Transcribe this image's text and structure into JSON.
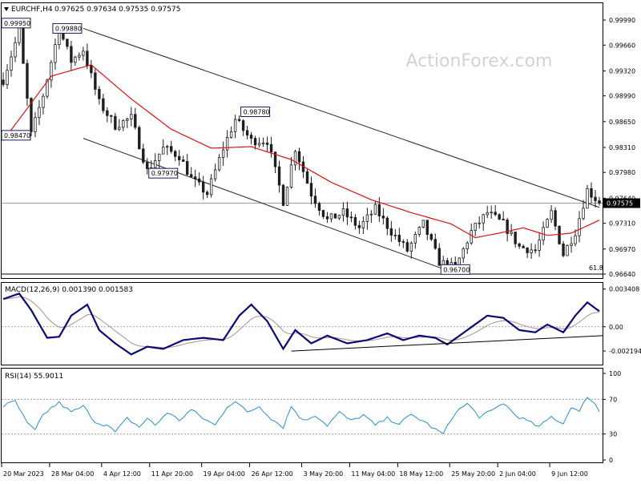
{
  "header": {
    "symbol": "EURCHF,H4",
    "ohlc": "0.97625 0.97634 0.97535 0.97575"
  },
  "watermark": "ActionForex.com",
  "colors": {
    "candle": "#1e1e1e",
    "ma": "#dd1111",
    "channel": "#222222",
    "macd_main": "#0a0a78",
    "macd_signal": "#b09090",
    "rsi": "#2a8fd0",
    "grid": "#a0a0a0"
  },
  "chart_data": [
    {
      "id": "price",
      "type": "candlestick",
      "title": "EURCHF,H4",
      "ylim": [
        0.9664,
        1.0017
      ],
      "yticks": [
        "0.99990",
        "0.99660",
        "0.99320",
        "0.98990",
        "0.98650",
        "0.98310",
        "0.97980",
        "0.97640",
        "0.97310",
        "0.96970",
        "0.96640"
      ],
      "current_price": "0.97575",
      "fib_label": "61.8",
      "fib_level": 0.9664,
      "anchors": [
        {
          "x": 0,
          "y": 0.992
        },
        {
          "x": 4,
          "y": 0.9985
        },
        {
          "x": 7,
          "y": 0.9848
        },
        {
          "x": 10,
          "y": 0.99
        },
        {
          "x": 14,
          "y": 0.9988
        },
        {
          "x": 17,
          "y": 0.9945
        },
        {
          "x": 20,
          "y": 0.996
        },
        {
          "x": 24,
          "y": 0.989
        },
        {
          "x": 28,
          "y": 0.986
        },
        {
          "x": 32,
          "y": 0.987
        },
        {
          "x": 36,
          "y": 0.98
        },
        {
          "x": 40,
          "y": 0.983
        },
        {
          "x": 44,
          "y": 0.982
        },
        {
          "x": 47,
          "y": 0.979
        },
        {
          "x": 51,
          "y": 0.977
        },
        {
          "x": 55,
          "y": 0.983
        },
        {
          "x": 58,
          "y": 0.9868
        },
        {
          "x": 62,
          "y": 0.984
        },
        {
          "x": 66,
          "y": 0.984
        },
        {
          "x": 70,
          "y": 0.976
        },
        {
          "x": 73,
          "y": 0.983
        },
        {
          "x": 77,
          "y": 0.977
        },
        {
          "x": 81,
          "y": 0.9735
        },
        {
          "x": 85,
          "y": 0.9745
        },
        {
          "x": 89,
          "y": 0.9725
        },
        {
          "x": 93,
          "y": 0.975
        },
        {
          "x": 97,
          "y": 0.972
        },
        {
          "x": 101,
          "y": 0.9695
        },
        {
          "x": 105,
          "y": 0.973
        },
        {
          "x": 109,
          "y": 0.968
        },
        {
          "x": 113,
          "y": 0.9672
        },
        {
          "x": 117,
          "y": 0.972
        },
        {
          "x": 121,
          "y": 0.9745
        },
        {
          "x": 125,
          "y": 0.973
        },
        {
          "x": 129,
          "y": 0.97
        },
        {
          "x": 133,
          "y": 0.9695
        },
        {
          "x": 137,
          "y": 0.9745
        },
        {
          "x": 140,
          "y": 0.969
        },
        {
          "x": 143,
          "y": 0.972
        },
        {
          "x": 146,
          "y": 0.9775
        },
        {
          "x": 149,
          "y": 0.9758
        }
      ],
      "ma_anchors": [
        {
          "x": 0,
          "y": 0.984
        },
        {
          "x": 12,
          "y": 0.9925
        },
        {
          "x": 22,
          "y": 0.994
        },
        {
          "x": 32,
          "y": 0.9895
        },
        {
          "x": 42,
          "y": 0.9855
        },
        {
          "x": 52,
          "y": 0.983
        },
        {
          "x": 62,
          "y": 0.9832
        },
        {
          "x": 72,
          "y": 0.9815
        },
        {
          "x": 82,
          "y": 0.9785
        },
        {
          "x": 92,
          "y": 0.9762
        },
        {
          "x": 102,
          "y": 0.9745
        },
        {
          "x": 112,
          "y": 0.973
        },
        {
          "x": 118,
          "y": 0.9712
        },
        {
          "x": 124,
          "y": 0.9718
        },
        {
          "x": 130,
          "y": 0.9725
        },
        {
          "x": 136,
          "y": 0.9715
        },
        {
          "x": 142,
          "y": 0.9718
        },
        {
          "x": 149,
          "y": 0.9735
        }
      ],
      "labels": [
        {
          "text": "0.99950",
          "x": 0,
          "y": 0.9995
        },
        {
          "text": "0.99880",
          "x": 16,
          "y": 0.9988
        },
        {
          "text": "0.98470",
          "x": 2,
          "y": 0.9847
        },
        {
          "text": "0.97970",
          "x": 40,
          "y": 0.9797
        },
        {
          "text": "0.98780",
          "x": 63,
          "y": 0.9878
        },
        {
          "text": "0.96700",
          "x": 113,
          "y": 0.967
        }
      ],
      "trendlines": [
        {
          "x1": 20,
          "y1": 0.9988,
          "x2": 149,
          "y2": 0.9752
        },
        {
          "x1": 20,
          "y1": 0.9843,
          "x2": 112,
          "y2": 0.9667
        }
      ]
    },
    {
      "id": "macd",
      "type": "line",
      "title": "MACD(12,26,9) 0.001390 0.001583",
      "ylim": [
        -0.0032,
        0.0036
      ],
      "yticks": [
        "0.003408",
        "0.00",
        "-0.002194"
      ],
      "zero_label": "0.00",
      "main_anchors": [
        {
          "x": 0,
          "y": 0.0025
        },
        {
          "x": 4,
          "y": 0.003
        },
        {
          "x": 7,
          "y": 0.0015
        },
        {
          "x": 11,
          "y": -0.001
        },
        {
          "x": 14,
          "y": -0.0009
        },
        {
          "x": 17,
          "y": 0.001
        },
        {
          "x": 21,
          "y": 0.002
        },
        {
          "x": 24,
          "y": -0.0003
        },
        {
          "x": 28,
          "y": -0.0015
        },
        {
          "x": 32,
          "y": -0.0025
        },
        {
          "x": 36,
          "y": -0.0018
        },
        {
          "x": 40,
          "y": -0.002
        },
        {
          "x": 45,
          "y": -0.0012
        },
        {
          "x": 50,
          "y": -0.001
        },
        {
          "x": 55,
          "y": -0.0012
        },
        {
          "x": 59,
          "y": 0.001
        },
        {
          "x": 62,
          "y": 0.002
        },
        {
          "x": 66,
          "y": 0.0005
        },
        {
          "x": 70,
          "y": -0.002
        },
        {
          "x": 73,
          "y": -0.0003
        },
        {
          "x": 77,
          "y": -0.0015
        },
        {
          "x": 81,
          "y": -0.0008
        },
        {
          "x": 86,
          "y": -0.0015
        },
        {
          "x": 91,
          "y": -0.0012
        },
        {
          "x": 96,
          "y": -0.0006
        },
        {
          "x": 100,
          "y": -0.0012
        },
        {
          "x": 104,
          "y": -0.0008
        },
        {
          "x": 108,
          "y": -0.001
        },
        {
          "x": 111,
          "y": -0.0016
        },
        {
          "x": 116,
          "y": -0.0003
        },
        {
          "x": 121,
          "y": 0.001
        },
        {
          "x": 125,
          "y": 0.0008
        },
        {
          "x": 129,
          "y": -0.0003
        },
        {
          "x": 133,
          "y": -0.0005
        },
        {
          "x": 136,
          "y": 0.0002
        },
        {
          "x": 140,
          "y": -0.0005
        },
        {
          "x": 143,
          "y": 0.001
        },
        {
          "x": 146,
          "y": 0.0022
        },
        {
          "x": 149,
          "y": 0.0014
        }
      ],
      "trendline": {
        "x1": 72,
        "y1": -0.0022,
        "x2": 149,
        "y2": -0.0008
      }
    },
    {
      "id": "rsi",
      "type": "line",
      "title": "RSI(14) 55.9011",
      "ylim": [
        0,
        100
      ],
      "yticks": [
        "100",
        "70",
        "30",
        "0"
      ],
      "levels": [
        70,
        30
      ],
      "anchors": [
        {
          "x": 0,
          "y": 62
        },
        {
          "x": 3,
          "y": 68
        },
        {
          "x": 6,
          "y": 42
        },
        {
          "x": 8,
          "y": 34
        },
        {
          "x": 10,
          "y": 52
        },
        {
          "x": 12,
          "y": 60
        },
        {
          "x": 14,
          "y": 66
        },
        {
          "x": 17,
          "y": 55
        },
        {
          "x": 20,
          "y": 62
        },
        {
          "x": 23,
          "y": 44
        },
        {
          "x": 26,
          "y": 40
        },
        {
          "x": 28,
          "y": 32
        },
        {
          "x": 31,
          "y": 48
        },
        {
          "x": 34,
          "y": 38
        },
        {
          "x": 36,
          "y": 48
        },
        {
          "x": 38,
          "y": 40
        },
        {
          "x": 41,
          "y": 55
        },
        {
          "x": 44,
          "y": 46
        },
        {
          "x": 47,
          "y": 58
        },
        {
          "x": 50,
          "y": 48
        },
        {
          "x": 53,
          "y": 40
        },
        {
          "x": 56,
          "y": 62
        },
        {
          "x": 58,
          "y": 68
        },
        {
          "x": 61,
          "y": 55
        },
        {
          "x": 64,
          "y": 62
        },
        {
          "x": 67,
          "y": 48
        },
        {
          "x": 70,
          "y": 38
        },
        {
          "x": 72,
          "y": 62
        },
        {
          "x": 75,
          "y": 45
        },
        {
          "x": 78,
          "y": 52
        },
        {
          "x": 81,
          "y": 40
        },
        {
          "x": 84,
          "y": 55
        },
        {
          "x": 87,
          "y": 45
        },
        {
          "x": 90,
          "y": 52
        },
        {
          "x": 93,
          "y": 40
        },
        {
          "x": 96,
          "y": 48
        },
        {
          "x": 99,
          "y": 42
        },
        {
          "x": 102,
          "y": 52
        },
        {
          "x": 105,
          "y": 45
        },
        {
          "x": 108,
          "y": 35
        },
        {
          "x": 110,
          "y": 30
        },
        {
          "x": 113,
          "y": 55
        },
        {
          "x": 116,
          "y": 65
        },
        {
          "x": 119,
          "y": 50
        },
        {
          "x": 122,
          "y": 56
        },
        {
          "x": 125,
          "y": 66
        },
        {
          "x": 128,
          "y": 52
        },
        {
          "x": 131,
          "y": 45
        },
        {
          "x": 134,
          "y": 38
        },
        {
          "x": 137,
          "y": 50
        },
        {
          "x": 140,
          "y": 42
        },
        {
          "x": 142,
          "y": 62
        },
        {
          "x": 144,
          "y": 55
        },
        {
          "x": 146,
          "y": 74
        },
        {
          "x": 148,
          "y": 64
        },
        {
          "x": 149,
          "y": 56
        }
      ]
    }
  ],
  "x_axis": {
    "labels": [
      "20 Mar 2023",
      "28 Mar 04:00",
      "4 Apr 12:00",
      "11 Apr 20:00",
      "19 Apr 04:00",
      "26 Apr 12:00",
      "3 May 20:00",
      "11 May 04:00",
      "18 May 12:00",
      "25 May 20:00",
      "2 Jun 04:00",
      "9 Jun 12:00"
    ]
  }
}
